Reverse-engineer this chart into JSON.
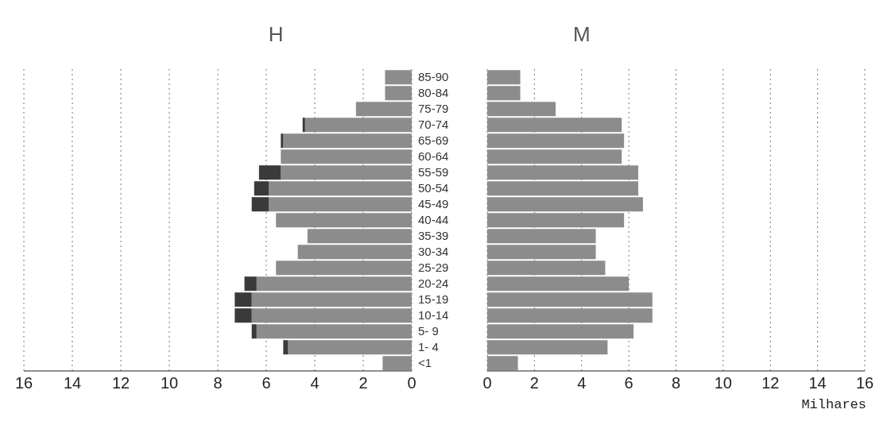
{
  "chart_data": [
    {
      "type": "bar",
      "title": "H",
      "orientation": "horizontal",
      "stacked": true,
      "grid": "x",
      "categories": [
        "85-90",
        "80-84",
        "75-79",
        "70-74",
        "65-69",
        "60-64",
        "55-59",
        "50-54",
        "45-49",
        "40-44",
        "35-39",
        "30-34",
        "25-29",
        "20-24",
        "15-19",
        "10-14",
        "5- 9",
        "1- 4",
        "<1"
      ],
      "series": [
        {
          "color": "#8c8c8c",
          "values": [
            1.1,
            1.1,
            2.3,
            4.4,
            5.3,
            5.4,
            5.4,
            5.9,
            5.9,
            5.6,
            4.3,
            4.7,
            5.6,
            6.4,
            6.6,
            6.6,
            6.4,
            5.1,
            1.2
          ]
        },
        {
          "color": "#3a3a3a",
          "values": [
            0,
            0,
            0,
            0.1,
            0.1,
            0,
            0.9,
            0.6,
            0.7,
            0,
            0,
            0,
            0,
            0.5,
            0.7,
            0.7,
            0.2,
            0.2,
            0
          ]
        }
      ],
      "xlim": [
        16,
        0
      ],
      "xticks": [
        16,
        14,
        12,
        10,
        8,
        6,
        4,
        2,
        0
      ]
    },
    {
      "type": "bar",
      "title": "M",
      "orientation": "horizontal",
      "grid": "x",
      "tick_labels": "x",
      "xlabel": "Milhares",
      "categories": [
        null,
        null,
        null,
        null,
        null,
        null,
        null,
        null,
        null,
        null,
        null,
        null,
        null,
        null,
        null,
        null,
        null,
        null,
        null
      ],
      "series": [
        {
          "color": "#8c8c8c",
          "values": [
            1.4,
            1.4,
            2.9,
            5.7,
            5.8,
            5.7,
            6.4,
            6.4,
            6.6,
            5.8,
            4.6,
            4.6,
            5.0,
            6.0,
            7.0,
            7.0,
            6.2,
            5.1,
            1.3
          ]
        }
      ],
      "xlim": [
        0,
        16
      ],
      "xticks": [
        0,
        2,
        4,
        6,
        8,
        10,
        12,
        14,
        16
      ]
    }
  ]
}
